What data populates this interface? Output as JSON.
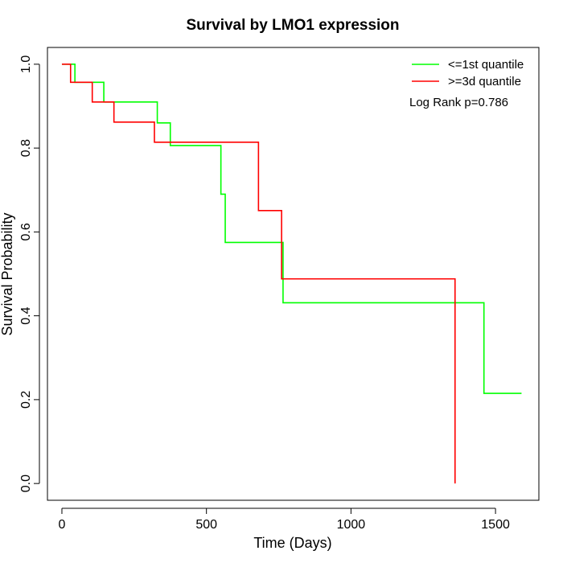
{
  "chart_data": {
    "type": "line",
    "title": "Survival by LMO1 expression",
    "xlabel": "Time (Days)",
    "ylabel": "Survival Probability",
    "xlim": [
      -50,
      1650
    ],
    "ylim": [
      -0.04,
      1.04
    ],
    "x_ticks": [
      0,
      500,
      1000,
      1500
    ],
    "x_tick_labels": [
      "0",
      "500",
      "1000",
      "1500"
    ],
    "y_ticks": [
      0.0,
      0.2,
      0.4,
      0.6,
      0.8,
      1.0
    ],
    "y_tick_labels": [
      "0.0",
      "0.2",
      "0.4",
      "0.6",
      "0.8",
      "1.0"
    ],
    "grid": false,
    "legend_position": "top-right",
    "annotation": "Log Rank p=0.786",
    "series": [
      {
        "name": "<=1st quantile",
        "color": "#00ff00",
        "x": [
          0,
          45,
          145,
          330,
          375,
          550,
          565,
          765,
          1460,
          1590
        ],
        "y": [
          1.0,
          0.957,
          0.91,
          0.86,
          0.806,
          0.69,
          0.575,
          0.431,
          0.215,
          0.215
        ]
      },
      {
        "name": ">=3d quantile",
        "color": "#ff0000",
        "x": [
          0,
          30,
          105,
          180,
          320,
          680,
          760,
          1360,
          1360
        ],
        "y": [
          1.0,
          0.957,
          0.91,
          0.862,
          0.814,
          0.651,
          0.488,
          0.488,
          0.0
        ]
      }
    ]
  }
}
